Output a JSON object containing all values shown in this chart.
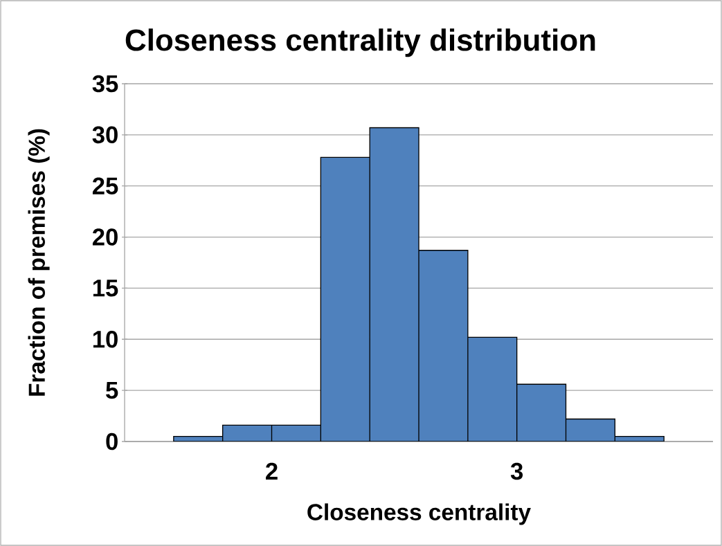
{
  "chart_data": {
    "type": "histogram",
    "title": "Closeness centrality distribution",
    "xlabel": "Closeness centrality",
    "ylabel": "Fraction of premises (%)",
    "bins": [
      1.6,
      1.8,
      2.0,
      2.2,
      2.4,
      2.6,
      2.8,
      3.0,
      3.2,
      3.4,
      3.6
    ],
    "values": [
      0.5,
      1.6,
      1.6,
      27.8,
      30.7,
      18.7,
      10.2,
      5.6,
      2.2,
      0.5
    ],
    "color": "#4f81bd",
    "xlim": [
      1.4,
      3.8
    ],
    "xticks": [
      2,
      3
    ],
    "ylim": [
      0,
      35
    ],
    "yticks": [
      0,
      5,
      10,
      15,
      20,
      25,
      30,
      35
    ],
    "grid": "y"
  }
}
